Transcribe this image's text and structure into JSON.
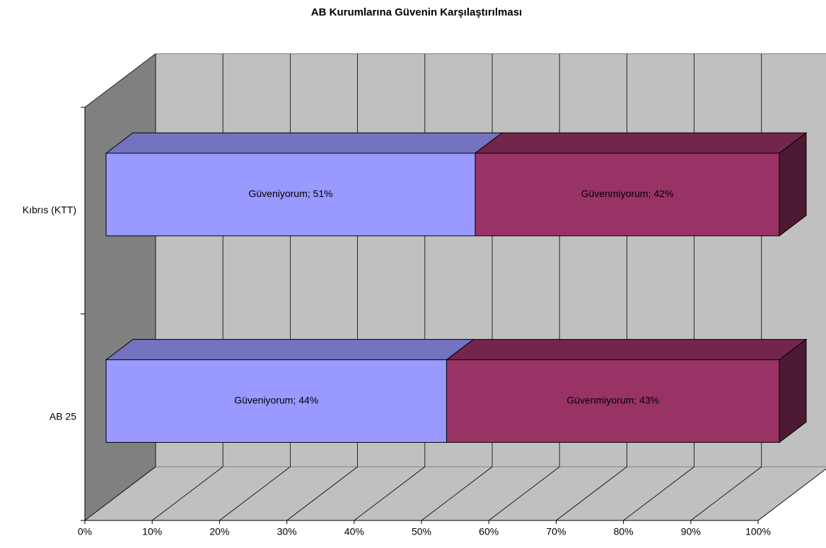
{
  "chart_data": {
    "type": "bar",
    "orientation": "horizontal",
    "stacking": "percent",
    "three_d": true,
    "title": "AB Kurumlarına Güvenin Karşılaştırılması",
    "categories": [
      "Kıbrıs (KTT)",
      "AB 25"
    ],
    "series": [
      {
        "name": "Güveniyorum",
        "color": "#9999ff",
        "values": [
          51,
          44
        ],
        "value_labels": [
          "Güveniyorum; 51%",
          "Güveniyorum; 44%"
        ]
      },
      {
        "name": "Güvenmiyorum",
        "color": "#993366",
        "values": [
          42,
          43
        ],
        "value_labels": [
          "Güvenmiyorum; 42%",
          "Güvenmiyorum; 43%"
        ]
      }
    ],
    "xlim": [
      0,
      100
    ],
    "xticks": [
      {
        "value": 0,
        "label": "0%"
      },
      {
        "value": 10,
        "label": "10%"
      },
      {
        "value": 20,
        "label": "20%"
      },
      {
        "value": 30,
        "label": "30%"
      },
      {
        "value": 40,
        "label": "40%"
      },
      {
        "value": 50,
        "label": "50%"
      },
      {
        "value": 60,
        "label": "60%"
      },
      {
        "value": 70,
        "label": "70%"
      },
      {
        "value": 80,
        "label": "80%"
      },
      {
        "value": 90,
        "label": "90%"
      },
      {
        "value": 100,
        "label": "100%"
      }
    ],
    "grid": true
  }
}
